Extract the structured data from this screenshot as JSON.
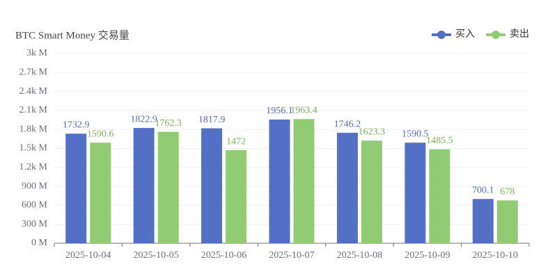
{
  "chart_data": {
    "type": "bar",
    "title": "BTC Smart Money 交易量",
    "categories": [
      "2025-10-04",
      "2025-10-05",
      "2025-10-06",
      "2025-10-07",
      "2025-10-08",
      "2025-10-09",
      "2025-10-10"
    ],
    "series": [
      {
        "name": "买入",
        "color": "#5470c6",
        "values": [
          1732.9,
          1822.9,
          1817.9,
          1956.1,
          1746.2,
          1590.5,
          700.1
        ]
      },
      {
        "name": "卖出",
        "color": "#91cc75",
        "values": [
          1590.6,
          1762.3,
          1472,
          1963.4,
          1623.3,
          1485.5,
          678
        ]
      }
    ],
    "ylim": [
      0,
      3000
    ],
    "yticks": [
      {
        "value": 0,
        "label": "0 M"
      },
      {
        "value": 300,
        "label": "300 M"
      },
      {
        "value": 600,
        "label": "600 M"
      },
      {
        "value": 900,
        "label": "900 M"
      },
      {
        "value": 1200,
        "label": "1.2k M"
      },
      {
        "value": 1500,
        "label": "1.5k M"
      },
      {
        "value": 1800,
        "label": "1.8k M"
      },
      {
        "value": 2100,
        "label": "2.1k M"
      },
      {
        "value": 2400,
        "label": "2.4k M"
      },
      {
        "value": 2700,
        "label": "2.7k M"
      },
      {
        "value": 3000,
        "label": "3k M"
      }
    ],
    "grid": true,
    "legend": "top-right"
  }
}
